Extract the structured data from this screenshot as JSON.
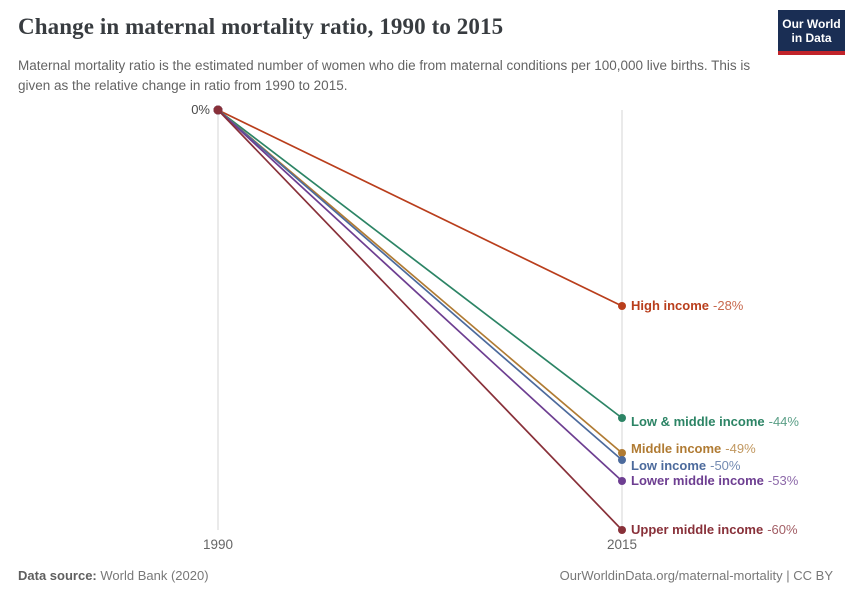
{
  "header": {
    "title": "Change in maternal mortality ratio, 1990 to 2015",
    "subtitle": "Maternal mortality ratio is the estimated number of women who die from maternal conditions per 100,000 live births. This is given as the relative change in ratio from 1990 to 2015.",
    "logo": {
      "line1": "Our World",
      "line2": "in Data",
      "bg_color": "#1A2E54",
      "accent_color": "#C1232A"
    }
  },
  "chart_data": {
    "type": "line",
    "subtype": "slope",
    "title": "Change in maternal mortality ratio, 1990 to 2015",
    "x": [
      1990,
      2015
    ],
    "unit": "%",
    "ylim": [
      -60,
      0
    ],
    "grid": "two vertical axis lines only",
    "legend_position": "right end-of-line labels",
    "y_start_label": "0%",
    "axis": {
      "x_ticks": [
        "1990",
        "2015"
      ],
      "grid_color": "#D5D5D5"
    },
    "series": [
      {
        "name": "High income",
        "values": [
          0,
          -28
        ],
        "end_label": "-28%",
        "color": "#B93E1C"
      },
      {
        "name": "Low & middle income",
        "values": [
          0,
          -44
        ],
        "end_label": "-44%",
        "color": "#2C8465"
      },
      {
        "name": "Middle income",
        "values": [
          0,
          -49
        ],
        "end_label": "-49%",
        "color": "#B07B33"
      },
      {
        "name": "Low income",
        "values": [
          0,
          -50
        ],
        "end_label": "-50%",
        "color": "#4C6A9C"
      },
      {
        "name": "Lower middle income",
        "values": [
          0,
          -53
        ],
        "end_label": "-53%",
        "color": "#6D3E91"
      },
      {
        "name": "Upper middle income",
        "values": [
          0,
          -60
        ],
        "end_label": "-60%",
        "color": "#883039"
      }
    ]
  },
  "footer": {
    "source_prefix": "Data source:",
    "source_text": "World Bank (2020)",
    "attribution": "OurWorldinData.org/maternal-mortality | CC BY"
  }
}
